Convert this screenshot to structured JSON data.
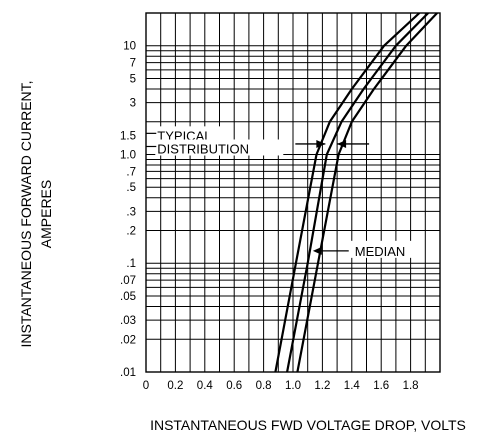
{
  "chart_data": {
    "type": "line",
    "xlabel": "INSTANTANEOUS FWD VOLTAGE DROP, VOLTS",
    "ylabel_line1": "INSTANTANEOUS FORWARD CURRENT,",
    "ylabel_line2": "AMPERES",
    "xlim": [
      0,
      2.0
    ],
    "ylim": [
      0.01,
      20
    ],
    "y_scale": "log",
    "grid": true,
    "x_ticks": [
      {
        "v": 0,
        "label": "0"
      },
      {
        "v": 0.2,
        "label": "0.2"
      },
      {
        "v": 0.4,
        "label": "0.4"
      },
      {
        "v": 0.6,
        "label": "0.6"
      },
      {
        "v": 0.8,
        "label": "0.8"
      },
      {
        "v": 1.0,
        "label": "1.0"
      },
      {
        "v": 1.2,
        "label": "1.2"
      },
      {
        "v": 1.4,
        "label": "1.4"
      },
      {
        "v": 1.6,
        "label": "1.6"
      },
      {
        "v": 1.8,
        "label": "1.8"
      }
    ],
    "y_ticks": [
      {
        "v": 0.01,
        "label": ".01"
      },
      {
        "v": 0.02,
        "label": ".02"
      },
      {
        "v": 0.03,
        "label": ".03"
      },
      {
        "v": 0.05,
        "label": ".05"
      },
      {
        "v": 0.07,
        "label": ".07"
      },
      {
        "v": 0.1,
        "label": ".1"
      },
      {
        "v": 0.2,
        "label": ".2"
      },
      {
        "v": 0.3,
        "label": ".3"
      },
      {
        "v": 0.5,
        "label": ".5"
      },
      {
        "v": 0.7,
        "label": ".7"
      },
      {
        "v": 1.0,
        "label": "1.0"
      },
      {
        "v": 1.5,
        "label": "1.5"
      },
      {
        "v": 3,
        "label": "3"
      },
      {
        "v": 5,
        "label": "5"
      },
      {
        "v": 7,
        "label": "7"
      },
      {
        "v": 10,
        "label": "10"
      }
    ],
    "series": [
      {
        "x": [
          0.88,
          1.02,
          1.16,
          1.25,
          1.4,
          1.62,
          1.86
        ],
        "y": [
          0.01,
          0.1,
          1.0,
          2.0,
          4.0,
          10.0,
          20.0
        ]
      },
      {
        "x": [
          0.96,
          1.1,
          1.23,
          1.33,
          1.48,
          1.7,
          1.92
        ],
        "y": [
          0.01,
          0.1,
          1.0,
          2.0,
          4.0,
          10.0,
          20.0
        ]
      },
      {
        "x": [
          1.03,
          1.17,
          1.31,
          1.4,
          1.55,
          1.77,
          1.98
        ],
        "y": [
          0.01,
          0.1,
          1.0,
          2.0,
          4.0,
          10.0,
          20.0
        ]
      }
    ],
    "annotations": [
      {
        "text": "TYPICAL",
        "x": 0.07,
        "y": 1.5
      },
      {
        "text": "DISTRIBUTION",
        "x": 0.07,
        "y": 1.0
      },
      {
        "text": "MEDIAN",
        "x": 1.42,
        "y": 0.13
      }
    ]
  }
}
